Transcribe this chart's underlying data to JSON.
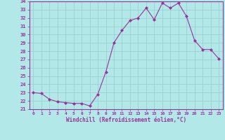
{
  "x": [
    0,
    1,
    2,
    3,
    4,
    5,
    6,
    7,
    8,
    9,
    10,
    11,
    12,
    13,
    14,
    15,
    16,
    17,
    18,
    19,
    20,
    21,
    22,
    23
  ],
  "y": [
    23.0,
    22.9,
    22.2,
    21.9,
    21.8,
    21.7,
    21.7,
    21.4,
    22.8,
    25.5,
    29.0,
    30.5,
    31.7,
    32.0,
    33.2,
    31.8,
    33.8,
    33.2,
    33.8,
    32.2,
    29.3,
    28.2,
    28.2,
    27.1
  ],
  "line_color": "#993399",
  "marker": "D",
  "marker_size": 2.0,
  "bg_color": "#b3e8e8",
  "grid_color": "#99cccc",
  "xlabel": "Windchill (Refroidissement éolien,°C)",
  "xlabel_color": "#993399",
  "tick_color": "#993399",
  "ylim": [
    21,
    34
  ],
  "xlim": [
    -0.5,
    23.5
  ],
  "yticks": [
    21,
    22,
    23,
    24,
    25,
    26,
    27,
    28,
    29,
    30,
    31,
    32,
    33,
    34
  ],
  "xticks": [
    0,
    1,
    2,
    3,
    4,
    5,
    6,
    7,
    8,
    9,
    10,
    11,
    12,
    13,
    14,
    15,
    16,
    17,
    18,
    19,
    20,
    21,
    22,
    23
  ],
  "spine_color": "#993399"
}
